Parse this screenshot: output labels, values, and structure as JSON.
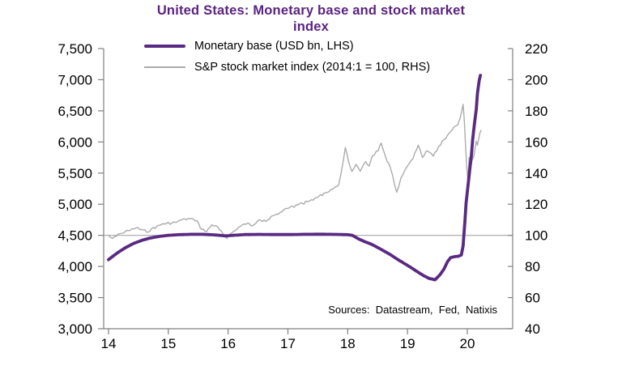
{
  "title": {
    "line1": "United States: Monetary base and stock market",
    "line2": "index"
  },
  "legend": [
    {
      "label": "Monetary base (USD bn, LHS)"
    },
    {
      "label": "S&P stock market index (2014:1 = 100, RHS)"
    }
  ],
  "sources": "Sources:  Datastream,  Fed,  Natixis",
  "colors": {
    "purple": "#5a2a82",
    "title_purple": "#5a2383",
    "series_gray": "#ababab",
    "axis_gray": "#808080",
    "ref_line_gray": "#a6a6a6",
    "text_black": "#000000"
  },
  "chart_data": {
    "type": "line",
    "title": "United States: Monetary base and stock market index",
    "x_axis": {
      "tick_values": [
        14,
        15,
        16,
        17,
        18,
        19,
        20
      ],
      "tick_labels": [
        "14",
        "15",
        "16",
        "17",
        "18",
        "19",
        "20"
      ],
      "range": [
        13.9,
        20.76
      ],
      "grid": false
    },
    "y_axis_left": {
      "tick_values": [
        3000,
        3500,
        4000,
        4500,
        5000,
        5500,
        6000,
        6500,
        7000,
        7500
      ],
      "tick_labels": [
        "3,000",
        "3,500",
        "4,000",
        "4,500",
        "5,000",
        "5,500",
        "6,000",
        "6,500",
        "7,000",
        "7,500"
      ],
      "range": [
        3000,
        7500
      ],
      "grid": false
    },
    "y_axis_right": {
      "tick_values": [
        40,
        60,
        80,
        100,
        120,
        140,
        160,
        180,
        200,
        220
      ],
      "tick_labels": [
        "40",
        "60",
        "80",
        "100",
        "120",
        "140",
        "160",
        "180",
        "200",
        "220"
      ],
      "range": [
        40,
        220
      ],
      "grid": false
    },
    "reference_line": {
      "axis": "right",
      "value": 100
    },
    "legend_position": "top-left-inside",
    "series": [
      {
        "name": "S&P stock market index (2014:1 = 100, RHS)",
        "axis": "right",
        "color_key": "series_gray",
        "line_style": "thin",
        "points": [
          [
            14.0,
            100
          ],
          [
            14.07,
            98
          ],
          [
            14.18,
            101
          ],
          [
            14.33,
            103
          ],
          [
            14.49,
            105
          ],
          [
            14.58,
            103.5
          ],
          [
            14.66,
            102
          ],
          [
            14.81,
            106
          ],
          [
            14.93,
            107.4
          ],
          [
            15.06,
            107.9
          ],
          [
            15.19,
            109.7
          ],
          [
            15.33,
            110.8
          ],
          [
            15.48,
            109.5
          ],
          [
            15.56,
            103.7
          ],
          [
            15.64,
            102.4
          ],
          [
            15.73,
            106.8
          ],
          [
            15.83,
            105.3
          ],
          [
            15.91,
            101.3
          ],
          [
            15.98,
            97.9
          ],
          [
            16.09,
            102.6
          ],
          [
            16.21,
            105.8
          ],
          [
            16.33,
            107.9
          ],
          [
            16.41,
            106.3
          ],
          [
            16.52,
            110
          ],
          [
            16.63,
            108.9
          ],
          [
            16.75,
            112.6
          ],
          [
            16.87,
            114.7
          ],
          [
            17.01,
            117.4
          ],
          [
            17.17,
            119.5
          ],
          [
            17.33,
            121.6
          ],
          [
            17.49,
            124.2
          ],
          [
            17.63,
            127.4
          ],
          [
            17.74,
            129.5
          ],
          [
            17.85,
            132.6
          ],
          [
            17.89,
            140
          ],
          [
            17.93,
            149
          ],
          [
            17.96,
            156.5
          ],
          [
            18.01,
            148
          ],
          [
            18.07,
            141.1
          ],
          [
            18.14,
            145.6
          ],
          [
            18.21,
            141.2
          ],
          [
            18.3,
            147.4
          ],
          [
            18.36,
            144.5
          ],
          [
            18.41,
            150.9
          ],
          [
            18.51,
            154.4
          ],
          [
            18.56,
            159.3
          ],
          [
            18.66,
            147.4
          ],
          [
            18.71,
            143.9
          ],
          [
            18.75,
            138.6
          ],
          [
            18.79,
            131.6
          ],
          [
            18.82,
            127.7
          ],
          [
            18.89,
            136.8
          ],
          [
            18.96,
            142.1
          ],
          [
            19.02,
            145.6
          ],
          [
            19.09,
            149.1
          ],
          [
            19.18,
            157.9
          ],
          [
            19.25,
            150
          ],
          [
            19.31,
            153.9
          ],
          [
            19.36,
            153.5
          ],
          [
            19.43,
            150.9
          ],
          [
            19.52,
            157
          ],
          [
            19.61,
            161.4
          ],
          [
            19.7,
            165.8
          ],
          [
            19.77,
            169.3
          ],
          [
            19.84,
            171
          ],
          [
            19.88,
            175.3
          ],
          [
            19.93,
            184.2
          ],
          [
            19.95,
            173.7
          ],
          [
            19.97,
            157.9
          ],
          [
            19.99,
            144.7
          ],
          [
            20.01,
            135.4
          ],
          [
            20.03,
            150
          ],
          [
            20.05,
            143
          ],
          [
            20.08,
            148.2
          ],
          [
            20.11,
            150.9
          ],
          [
            20.15,
            160.5
          ],
          [
            20.17,
            157.9
          ],
          [
            20.21,
            165.8
          ],
          [
            20.23,
            167.4
          ]
        ]
      },
      {
        "name": "Monetary base (USD bn, LHS)",
        "axis": "left",
        "color_key": "purple",
        "line_style": "thick",
        "points": [
          [
            14.0,
            4110
          ],
          [
            14.15,
            4220
          ],
          [
            14.28,
            4300
          ],
          [
            14.42,
            4370
          ],
          [
            14.56,
            4420
          ],
          [
            14.69,
            4455
          ],
          [
            14.84,
            4482
          ],
          [
            15.0,
            4500
          ],
          [
            15.16,
            4510
          ],
          [
            15.37,
            4516
          ],
          [
            15.57,
            4516
          ],
          [
            15.77,
            4508
          ],
          [
            15.95,
            4492
          ],
          [
            16.11,
            4502
          ],
          [
            16.28,
            4512
          ],
          [
            16.52,
            4515
          ],
          [
            16.79,
            4512
          ],
          [
            17.01,
            4512
          ],
          [
            17.26,
            4516
          ],
          [
            17.54,
            4518
          ],
          [
            17.81,
            4515
          ],
          [
            18.0,
            4510
          ],
          [
            18.08,
            4500
          ],
          [
            18.17,
            4448
          ],
          [
            18.28,
            4400
          ],
          [
            18.39,
            4360
          ],
          [
            18.5,
            4305
          ],
          [
            18.6,
            4252
          ],
          [
            18.71,
            4192
          ],
          [
            18.82,
            4122
          ],
          [
            18.93,
            4058
          ],
          [
            19.05,
            3988
          ],
          [
            19.16,
            3918
          ],
          [
            19.27,
            3852
          ],
          [
            19.36,
            3808
          ],
          [
            19.46,
            3786
          ],
          [
            19.54,
            3862
          ],
          [
            19.61,
            3958
          ],
          [
            19.67,
            4078
          ],
          [
            19.72,
            4142
          ],
          [
            19.78,
            4156
          ],
          [
            19.85,
            4164
          ],
          [
            19.9,
            4184
          ],
          [
            19.93,
            4330
          ],
          [
            19.96,
            4720
          ],
          [
            19.98,
            5020
          ],
          [
            20.01,
            5280
          ],
          [
            20.04,
            5540
          ],
          [
            20.07,
            5790
          ],
          [
            20.09,
            6040
          ],
          [
            20.12,
            6290
          ],
          [
            20.15,
            6530
          ],
          [
            20.17,
            6780
          ],
          [
            20.2,
            6990
          ],
          [
            20.22,
            7070
          ]
        ]
      }
    ]
  }
}
